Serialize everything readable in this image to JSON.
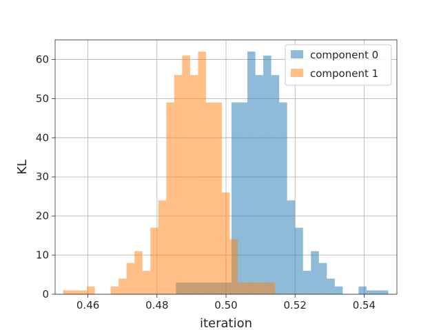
{
  "chart_data": {
    "type": "histogram",
    "xlabel": "iteration",
    "ylabel": "KL",
    "xlim": [
      0.4505,
      0.5495
    ],
    "ylim": [
      0,
      65
    ],
    "x_ticks": [
      0.46,
      0.48,
      0.5,
      0.52,
      0.54
    ],
    "x_tick_labels": [
      "0.46",
      "0.48",
      "0.50",
      "0.52",
      "0.54"
    ],
    "y_ticks": [
      0,
      10,
      20,
      30,
      40,
      50,
      60
    ],
    "y_tick_labels": [
      "0",
      "10",
      "20",
      "30",
      "40",
      "50",
      "60"
    ],
    "grid": true,
    "legend_position": "top-right",
    "series": [
      {
        "name": "component 0",
        "color": "#1f77b4",
        "alpha": 0.5,
        "bin_edges": [
          0.4855,
          0.4878,
          0.4901,
          0.4924,
          0.4947,
          0.497,
          0.4993,
          0.5016,
          0.5039,
          0.5062,
          0.5085,
          0.5108,
          0.5131,
          0.5154,
          0.5177,
          0.52,
          0.5223,
          0.5246,
          0.5269,
          0.5292,
          0.5315,
          0.5338,
          0.5361,
          0.5384,
          0.5407,
          0.543,
          0.547
        ],
        "counts": [
          3,
          3,
          3,
          3,
          3,
          3,
          3,
          49,
          49,
          62,
          56,
          61,
          56,
          49,
          24,
          17,
          6,
          11,
          8,
          4,
          2,
          0,
          0,
          2,
          1,
          1
        ]
      },
      {
        "name": "component 1",
        "color": "#ff7f0e",
        "alpha": 0.5,
        "bin_edges": [
          0.4528,
          0.4551,
          0.4574,
          0.4597,
          0.462,
          0.4643,
          0.4666,
          0.4689,
          0.4712,
          0.4735,
          0.4758,
          0.4781,
          0.4804,
          0.4827,
          0.485,
          0.4873,
          0.4896,
          0.4919,
          0.4942,
          0.4965,
          0.4988,
          0.5011,
          0.5034,
          0.5057,
          0.508,
          0.5103,
          0.5126,
          0.5142
        ],
        "counts": [
          1,
          1,
          1,
          2,
          0,
          0,
          2,
          4,
          8,
          11,
          6,
          17,
          24,
          49,
          56,
          61,
          56,
          62,
          49,
          49,
          26,
          14,
          3,
          3,
          3,
          3,
          3
        ]
      }
    ]
  }
}
